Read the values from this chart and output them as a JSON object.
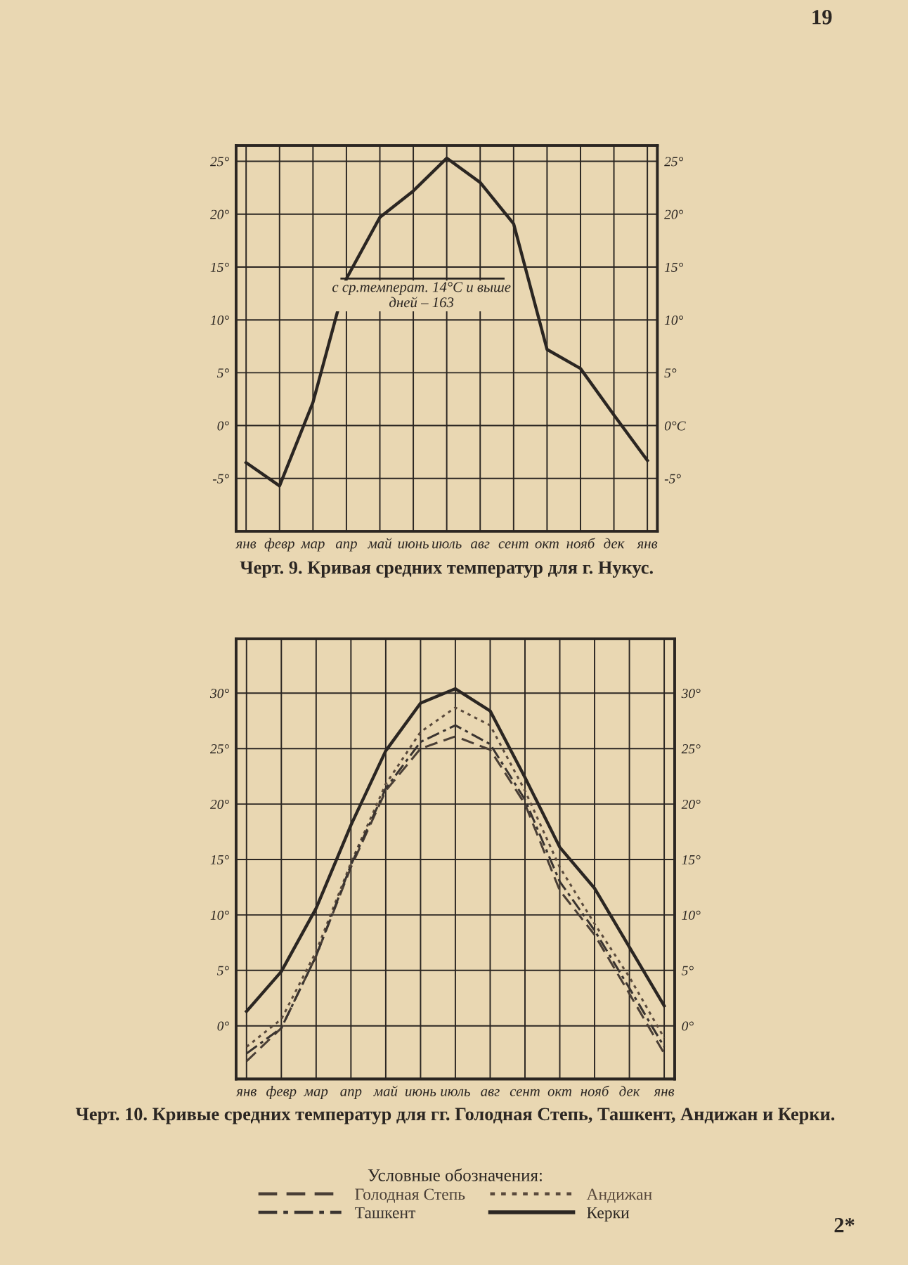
{
  "chart_data": [
    {
      "type": "line",
      "title": "Черт. 9. Кривая средних температур для г. Нукус.",
      "categories": [
        "янв",
        "февр",
        "мар",
        "апр",
        "май",
        "июнь",
        "июль",
        "авг",
        "сент",
        "окт",
        "нояб",
        "дек",
        "янв"
      ],
      "series": [
        {
          "color": "#2b2622",
          "line_style": "solid",
          "values": [
            -3.5,
            -5.7,
            2.2,
            13.9,
            19.7,
            22.2,
            25.3,
            23.0,
            19.1,
            7.2,
            5.4,
            1.0,
            -3.3
          ]
        }
      ],
      "ylim": [
        -10,
        26.5
      ],
      "yticks": [
        {
          "value": -5,
          "label": "-5°"
        },
        {
          "value": 0,
          "label": "0°"
        },
        {
          "value": 5,
          "label": "5°"
        },
        {
          "value": 10,
          "label": "10°"
        },
        {
          "value": 15,
          "label": "15°"
        },
        {
          "value": 20,
          "label": "20°"
        },
        {
          "value": 25,
          "label": "25°"
        }
      ],
      "y2lim": [
        -10,
        26.5
      ],
      "y2ticks": [
        {
          "value": -5,
          "label": "-5°"
        },
        {
          "value": 0,
          "label": "0°C"
        },
        {
          "value": 5,
          "label": "5°"
        },
        {
          "value": 10,
          "label": "10°"
        },
        {
          "value": 15,
          "label": "15°"
        },
        {
          "value": 20,
          "label": "20°"
        },
        {
          "value": 25,
          "label": "25°"
        }
      ],
      "grid": true,
      "marker": "none",
      "annotations": [
        "с ср.температ. 14°С и выше\nдней – 163",
        "19"
      ]
    },
    {
      "type": "line",
      "title": "Черт. 10. Кривые средних температур для гг. Голодная Степь, Ташкент, Андижан и Керки.",
      "legend_title": "Условные обозначения:",
      "categories": [
        "янв",
        "февр",
        "мар",
        "апр",
        "май",
        "июнь",
        "июль",
        "авг",
        "сент",
        "окт",
        "нояб",
        "дек",
        "янв"
      ],
      "series": [
        {
          "name": "Голодная Степь",
          "color": "#4a3f36",
          "line_style": "dashed",
          "values": [
            -3.2,
            -0.2,
            6.3,
            14.3,
            21.2,
            25.0,
            26.1,
            24.9,
            20.0,
            12.2,
            8.2,
            2.9,
            -2.5
          ]
        },
        {
          "name": "Андижан",
          "color": "#5a4a3c",
          "line_style": "dotted",
          "values": [
            -1.9,
            0.6,
            6.7,
            14.7,
            21.8,
            26.5,
            28.7,
            27.1,
            21.2,
            14.3,
            9.2,
            4.4,
            -1.1
          ]
        },
        {
          "name": "Ташкент",
          "color": "#3a3430",
          "line_style": "dashdot",
          "values": [
            -2.5,
            -0.2,
            6.3,
            14.5,
            21.4,
            25.6,
            27.1,
            25.4,
            20.4,
            13.0,
            8.6,
            3.4,
            -1.9
          ]
        },
        {
          "name": "Керки",
          "color": "#2b2622",
          "line_style": "solid",
          "values": [
            1.3,
            4.9,
            10.6,
            18.1,
            24.8,
            29.1,
            30.4,
            28.4,
            22.4,
            16.1,
            12.4,
            7.1,
            1.8
          ]
        }
      ],
      "ylim": [
        -4.8,
        34.9
      ],
      "yticks": [
        {
          "value": 0,
          "label": "0°"
        },
        {
          "value": 5,
          "label": "5°"
        },
        {
          "value": 10,
          "label": "10°"
        },
        {
          "value": 15,
          "label": "15°"
        },
        {
          "value": 20,
          "label": "20°"
        },
        {
          "value": 25,
          "label": "25°"
        },
        {
          "value": 30,
          "label": "30°"
        }
      ],
      "y2lim": [
        -4.8,
        34.9
      ],
      "y2ticks": [
        {
          "value": 0,
          "label": "0°"
        },
        {
          "value": 5,
          "label": "5°"
        },
        {
          "value": 10,
          "label": "10°"
        },
        {
          "value": 15,
          "label": "15°"
        },
        {
          "value": 20,
          "label": "20°"
        },
        {
          "value": 25,
          "label": "25°"
        },
        {
          "value": 30,
          "label": "30°"
        }
      ],
      "grid": true,
      "marker": "none",
      "legend": "bottom",
      "annotations": [
        "2*"
      ]
    }
  ]
}
